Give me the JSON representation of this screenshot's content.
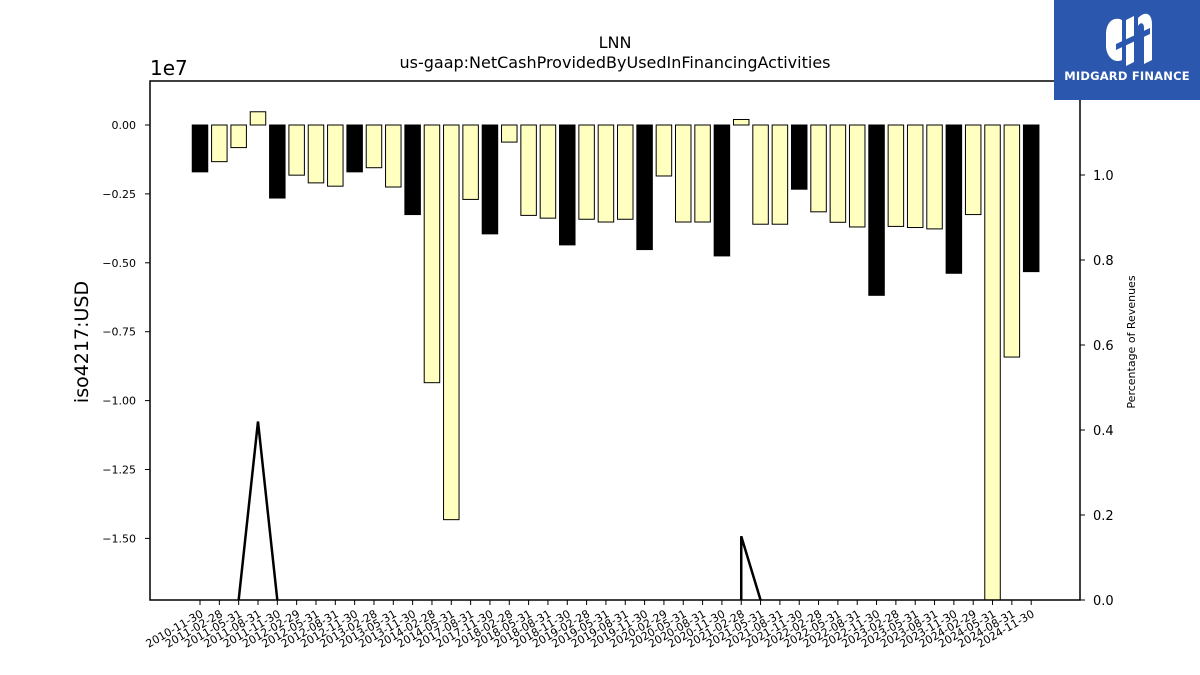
{
  "brand": {
    "name": "MIDGARD FINANCE",
    "color": "#2b57ae"
  },
  "chart_data": {
    "type": "bar",
    "title": "LNN",
    "subtitle": "us-gaap:NetCashProvidedByUsedInFinancingActivities",
    "ylabel": "iso4217:USD",
    "y2label": "Percentage of Revenues",
    "offset_text": "1e7",
    "y_scale": 10000000,
    "ylim": [
      -17200000,
      1600000
    ],
    "yticks": [
      0,
      -2500000,
      -5000000,
      -7500000,
      -10000000,
      -12500000,
      -15000000
    ],
    "ytick_labels": [
      "0.00",
      "−0.25",
      "−0.50",
      "−0.75",
      "−1.00",
      "−1.25",
      "−1.50"
    ],
    "y2lim": [
      0,
      1.2
    ],
    "y2ticks": [
      0.0,
      0.2,
      0.4,
      0.6,
      0.8,
      1.0
    ],
    "y2tick_labels": [
      "0.0",
      "0.2",
      "0.4",
      "0.6",
      "0.8",
      "1.0"
    ],
    "bar_colors": {
      "fiscal_year_end": "#000000",
      "quarter": "#ffffc0"
    },
    "categories": [
      "2010-11-30",
      "2011-02-28",
      "2011-05-31",
      "2011-08-31",
      "2011-11-30",
      "2012-02-29",
      "2012-05-31",
      "2012-08-31",
      "2012-11-30",
      "2013-02-28",
      "2013-05-31",
      "2013-11-30",
      "2014-02-28",
      "2014-05-31",
      "2017-08-31",
      "2017-11-30",
      "2018-02-28",
      "2018-05-31",
      "2018-08-31",
      "2018-11-30",
      "2019-02-28",
      "2019-05-31",
      "2019-08-31",
      "2019-11-30",
      "2020-02-29",
      "2020-05-31",
      "2020-08-31",
      "2020-11-30",
      "2021-02-28",
      "2021-05-31",
      "2021-08-31",
      "2021-11-30",
      "2022-02-28",
      "2022-05-31",
      "2022-08-31",
      "2022-11-30",
      "2023-02-28",
      "2023-05-31",
      "2023-08-31",
      "2023-11-30",
      "2024-02-29",
      "2024-05-31",
      "2024-08-31",
      "2024-11-30"
    ],
    "values": [
      -1700000,
      -1330000,
      -820000,
      480000,
      -2650000,
      -1820000,
      -2100000,
      -2220000,
      -1700000,
      -1550000,
      -2250000,
      -3250000,
      -9350000,
      -14320000,
      -2700000,
      -3950000,
      -620000,
      -3280000,
      -3380000,
      -4350000,
      -3420000,
      -3520000,
      -3420000,
      -4520000,
      -1850000,
      -3520000,
      -3520000,
      -4750000,
      200000,
      -3600000,
      -3600000,
      -2330000,
      -3150000,
      -3530000,
      -3700000,
      -6180000,
      -3680000,
      -3720000,
      -3770000,
      -5380000,
      -3250000,
      -17300000,
      -8420000,
      -5320000
    ],
    "fiscal_year_end": [
      true,
      false,
      false,
      false,
      true,
      false,
      false,
      false,
      true,
      false,
      false,
      true,
      false,
      false,
      false,
      true,
      false,
      false,
      false,
      true,
      false,
      false,
      false,
      true,
      false,
      false,
      false,
      true,
      false,
      false,
      false,
      true,
      false,
      false,
      false,
      true,
      false,
      false,
      false,
      true,
      false,
      false,
      false,
      true
    ],
    "pct_series_points": [
      {
        "x": "2011-05-31",
        "y": 0.0
      },
      {
        "x": "2011-08-31",
        "y": 0.42
      },
      {
        "x": "2011-11-30",
        "y": 0.0
      },
      {
        "x": "2021-02-28",
        "y": 0.0
      },
      {
        "x": "2021-02-28",
        "y": 0.15
      },
      {
        "x": "2021-05-31",
        "y": 0.0
      }
    ],
    "grid": false,
    "legend": "none"
  }
}
